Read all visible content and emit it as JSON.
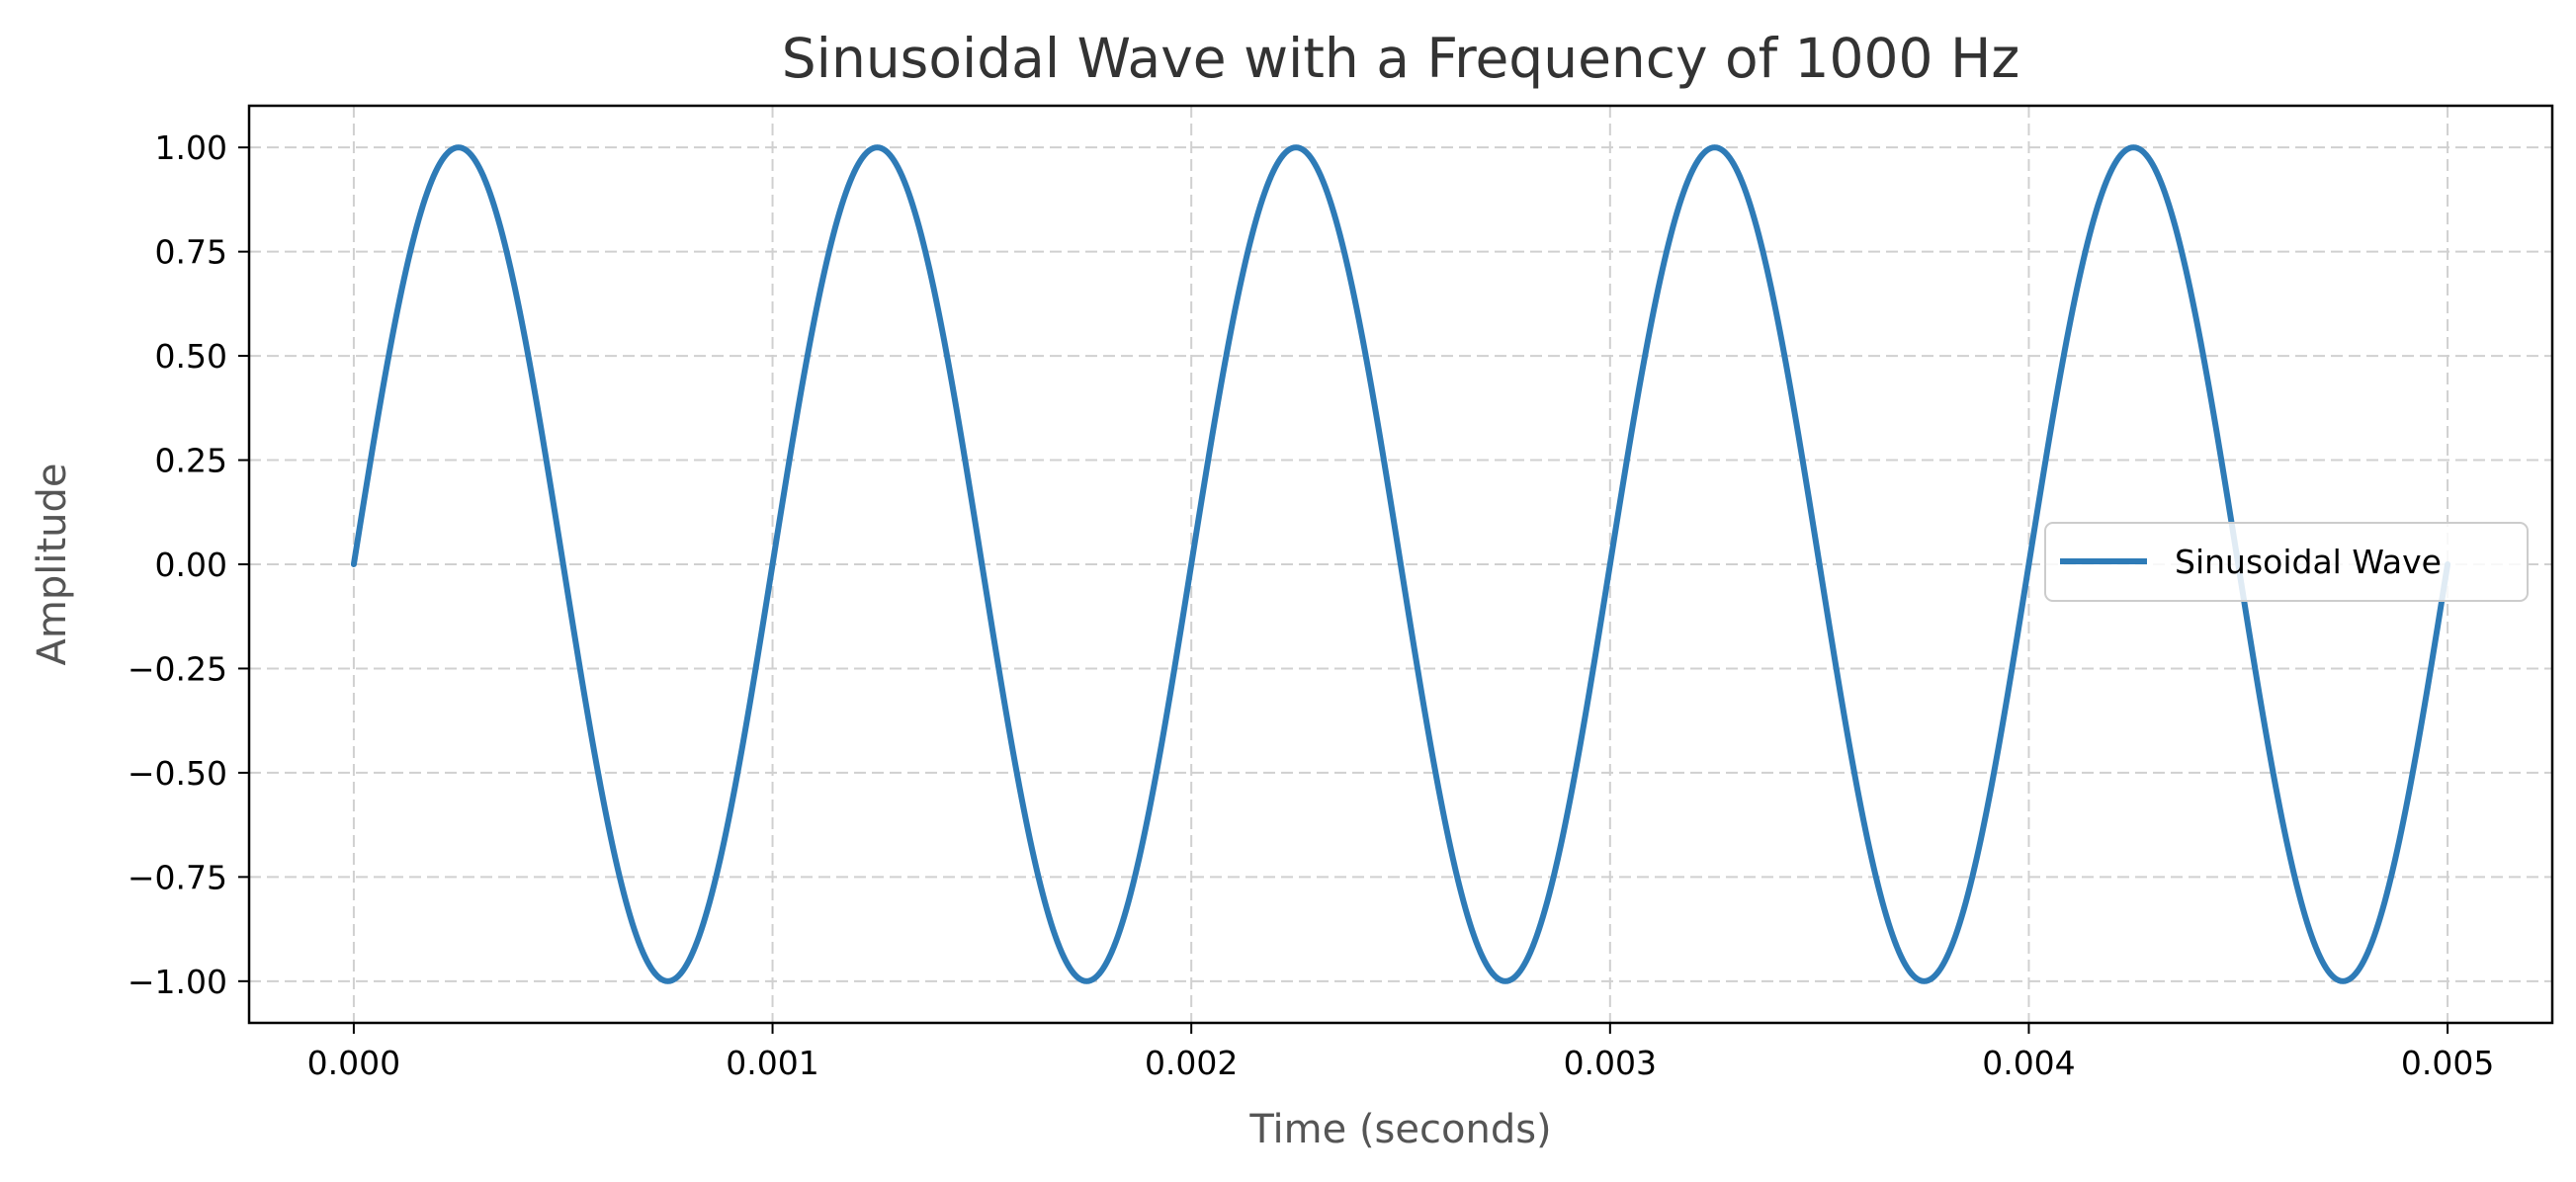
{
  "chart_data": {
    "type": "line",
    "title": "Sinusoidal Wave with a Frequency of 1000 Hz",
    "xlabel": "Time (seconds)",
    "ylabel": "Amplitude",
    "xlim": [
      -0.00025,
      0.00525
    ],
    "ylim": [
      -1.1,
      1.1
    ],
    "x_ticks": [
      "0.000",
      "0.001",
      "0.002",
      "0.003",
      "0.004",
      "0.005"
    ],
    "x_tick_values": [
      0,
      0.001,
      0.002,
      0.003,
      0.004,
      0.005
    ],
    "y_ticks": [
      "1.00",
      "0.75",
      "0.50",
      "0.25",
      "0.00",
      "−0.25",
      "−0.50",
      "−0.75",
      "−1.00"
    ],
    "y_tick_values": [
      1.0,
      0.75,
      0.5,
      0.25,
      0.0,
      -0.25,
      -0.5,
      -0.75,
      -1.0
    ],
    "grid": true,
    "legend_position": "center-right",
    "series": [
      {
        "name": "Sinusoidal Wave",
        "color": "#2e7bb7",
        "frequency_hz": 1000,
        "amplitude": 1.0,
        "x_start": 0,
        "x_end": 0.005,
        "x": [
          0,
          0.00025,
          0.0005,
          0.00075,
          0.001,
          0.00125,
          0.0015,
          0.00175,
          0.002,
          0.00225,
          0.0025,
          0.00275,
          0.003,
          0.00325,
          0.0035,
          0.00375,
          0.004,
          0.00425,
          0.0045,
          0.00475,
          0.005
        ],
        "y": [
          0,
          1,
          0,
          -1,
          0,
          1,
          0,
          -1,
          0,
          1,
          0,
          -1,
          0,
          1,
          0,
          -1,
          0,
          1,
          0,
          -1,
          0
        ]
      }
    ]
  }
}
